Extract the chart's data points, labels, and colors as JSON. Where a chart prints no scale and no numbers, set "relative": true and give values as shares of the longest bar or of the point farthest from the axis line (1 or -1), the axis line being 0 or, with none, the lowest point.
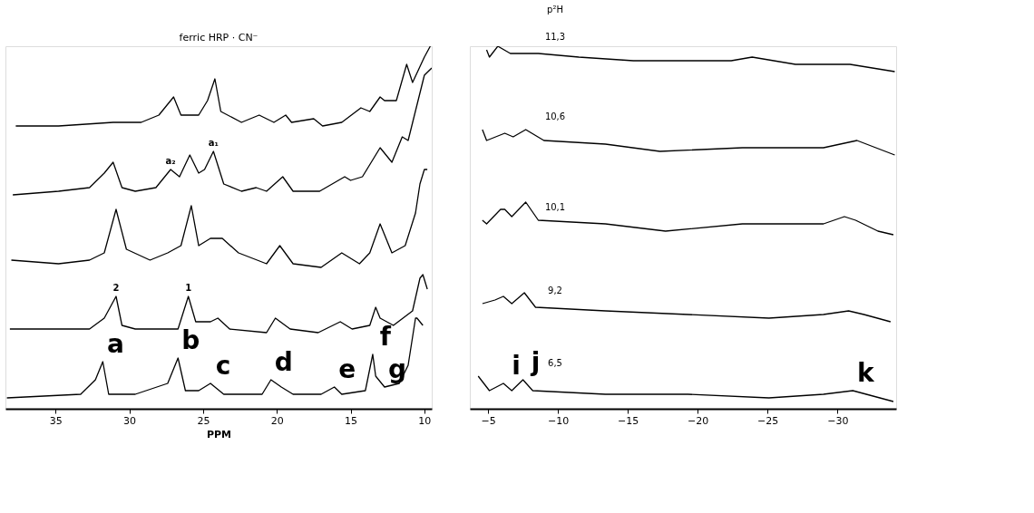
{
  "chart_data": [
    {
      "type": "line",
      "title": "ferric HRP · CN⁻",
      "xlabel": "PPM",
      "relative": true,
      "xlim": [
        38.4,
        9.5
      ],
      "xticks": [
        35,
        30,
        25,
        20,
        15,
        10
      ],
      "grid": false,
      "marker": "none",
      "line_style": "solid",
      "legend": false,
      "series": [
        {
          "color": "#000000",
          "x": [
            37.7,
            34.8,
            31.1,
            29.2,
            28.0,
            27.0,
            26.5,
            25.3,
            24.7,
            24.2,
            23.8,
            22.4,
            21.2,
            20.2,
            19.4,
            19.0,
            17.5,
            16.9,
            15.6,
            14.3,
            13.7,
            13.0,
            12.7,
            11.9,
            11.2,
            10.8,
            10.0,
            9.6
          ],
          "values": [
            0.78,
            0.78,
            0.79,
            0.79,
            0.81,
            0.86,
            0.81,
            0.81,
            0.85,
            0.91,
            0.82,
            0.79,
            0.81,
            0.79,
            0.81,
            0.79,
            0.8,
            0.78,
            0.79,
            0.83,
            0.82,
            0.86,
            0.85,
            0.85,
            0.95,
            0.9,
            0.97,
            1.0
          ]
        },
        {
          "color": "#000000",
          "x": [
            37.9,
            34.8,
            32.7,
            31.7,
            31.1,
            30.5,
            29.6,
            28.2,
            27.2,
            26.6,
            25.9,
            25.3,
            24.9,
            24.3,
            23.6,
            22.4,
            21.4,
            20.7,
            19.6,
            18.9,
            17.1,
            15.4,
            15.0,
            14.2,
            13.0,
            12.2,
            11.5,
            11.1,
            10.0,
            9.5
          ],
          "values": [
            0.59,
            0.6,
            0.61,
            0.65,
            0.68,
            0.61,
            0.6,
            0.61,
            0.66,
            0.64,
            0.7,
            0.65,
            0.66,
            0.71,
            0.62,
            0.6,
            0.61,
            0.6,
            0.64,
            0.6,
            0.6,
            0.64,
            0.63,
            0.64,
            0.72,
            0.68,
            0.75,
            0.74,
            0.92,
            0.94
          ]
        },
        {
          "color": "#000000",
          "x": [
            38.0,
            34.8,
            32.7,
            31.7,
            30.9,
            30.2,
            28.6,
            27.4,
            26.5,
            25.8,
            25.3,
            24.5,
            23.7,
            22.6,
            20.7,
            19.8,
            18.9,
            17.0,
            15.6,
            14.4,
            13.7,
            13.0,
            12.2,
            11.3,
            10.6,
            10.3,
            10.0,
            9.8
          ],
          "values": [
            0.41,
            0.4,
            0.41,
            0.43,
            0.55,
            0.44,
            0.41,
            0.43,
            0.45,
            0.56,
            0.45,
            0.47,
            0.47,
            0.43,
            0.4,
            0.45,
            0.4,
            0.39,
            0.43,
            0.4,
            0.43,
            0.51,
            0.43,
            0.45,
            0.54,
            0.62,
            0.66,
            0.66
          ]
        },
        {
          "color": "#000000",
          "x": [
            38.1,
            32.7,
            31.7,
            30.9,
            30.5,
            29.6,
            26.7,
            26.0,
            25.5,
            24.5,
            24.0,
            23.2,
            20.7,
            20.1,
            19.1,
            17.2,
            15.7,
            14.9,
            13.7,
            13.3,
            13.0,
            12.1,
            10.8,
            10.3,
            10.1,
            9.8
          ],
          "values": [
            0.22,
            0.22,
            0.25,
            0.31,
            0.23,
            0.22,
            0.22,
            0.31,
            0.24,
            0.24,
            0.25,
            0.22,
            0.21,
            0.25,
            0.22,
            0.21,
            0.24,
            0.22,
            0.23,
            0.28,
            0.25,
            0.23,
            0.27,
            0.36,
            0.37,
            0.33
          ]
        },
        {
          "color": "#000000",
          "x": [
            38.3,
            33.3,
            32.3,
            31.8,
            31.4,
            29.6,
            27.4,
            26.7,
            26.2,
            25.3,
            24.5,
            23.6,
            21.0,
            20.4,
            19.7,
            18.9,
            17.0,
            16.1,
            15.6,
            14.0,
            13.5,
            13.3,
            12.7,
            11.7,
            11.1,
            10.6,
            10.5,
            10.1
          ],
          "values": [
            0.03,
            0.04,
            0.08,
            0.13,
            0.04,
            0.04,
            0.07,
            0.14,
            0.05,
            0.05,
            0.07,
            0.04,
            0.04,
            0.08,
            0.06,
            0.04,
            0.04,
            0.06,
            0.04,
            0.05,
            0.15,
            0.09,
            0.06,
            0.07,
            0.12,
            0.25,
            0.25,
            0.23
          ]
        }
      ],
      "annotations": [
        {
          "text": "a₂",
          "x": 27.2,
          "y": 0.66
        },
        {
          "text": "a₁",
          "x": 24.3,
          "y": 0.71
        },
        {
          "text": "2",
          "x": 30.9,
          "y": 0.31
        },
        {
          "text": "1",
          "x": 26.0,
          "y": 0.31
        },
        {
          "text": "a",
          "x": 31.8,
          "y": 0.13
        },
        {
          "text": "b",
          "x": 26.7,
          "y": 0.14
        },
        {
          "text": "c",
          "x": 24.5,
          "y": 0.07
        },
        {
          "text": "d",
          "x": 20.4,
          "y": 0.08
        },
        {
          "text": "e",
          "x": 16.1,
          "y": 0.06
        },
        {
          "text": "f",
          "x": 13.5,
          "y": 0.15
        },
        {
          "text": "g",
          "x": 12.7,
          "y": 0.06
        }
      ]
    },
    {
      "type": "line",
      "legend_title": "p²H",
      "relative": true,
      "xlim": [
        -3.7,
        -34.2
      ],
      "xticks": [
        -5,
        -10,
        -15,
        -20,
        -25,
        -30
      ],
      "grid": false,
      "marker": "none",
      "line_style": "solid",
      "legend": "top left",
      "series": [
        {
          "name": "11,3",
          "color": "#000000",
          "x": [
            -4.9,
            -5.1,
            -5.7,
            -6.6,
            -8.6,
            -11.5,
            -15.4,
            -19.3,
            -20.8,
            -22.4,
            -23.9,
            -27.0,
            -30.9,
            -34.1
          ],
          "values": [
            0.99,
            0.97,
            1.0,
            0.98,
            0.98,
            0.97,
            0.96,
            0.96,
            0.96,
            0.96,
            0.97,
            0.95,
            0.95,
            0.93
          ]
        },
        {
          "name": "10,6",
          "color": "#000000",
          "x": [
            -4.6,
            -4.9,
            -6.2,
            -6.8,
            -7.7,
            -9.0,
            -13.4,
            -17.3,
            -23.2,
            -29.0,
            -31.4,
            -34.1
          ],
          "values": [
            0.77,
            0.74,
            0.76,
            0.75,
            0.77,
            0.74,
            0.73,
            0.71,
            0.72,
            0.72,
            0.74,
            0.7
          ]
        },
        {
          "name": "10,1",
          "color": "#000000",
          "x": [
            -4.6,
            -4.9,
            -5.9,
            -6.2,
            -6.7,
            -7.7,
            -8.6,
            -13.4,
            -17.7,
            -23.2,
            -29.0,
            -30.5,
            -31.3,
            -32.9,
            -34.0
          ],
          "values": [
            0.52,
            0.51,
            0.55,
            0.55,
            0.53,
            0.57,
            0.52,
            0.51,
            0.49,
            0.51,
            0.51,
            0.53,
            0.52,
            0.49,
            0.48
          ]
        },
        {
          "name": "9,2",
          "color": "#000000",
          "x": [
            -4.6,
            -5.5,
            -6.1,
            -6.7,
            -7.6,
            -8.4,
            -13.4,
            -19.3,
            -25.1,
            -29.0,
            -30.8,
            -31.9,
            -33.8
          ],
          "values": [
            0.29,
            0.3,
            0.31,
            0.29,
            0.32,
            0.28,
            0.27,
            0.26,
            0.25,
            0.26,
            0.27,
            0.26,
            0.24
          ]
        },
        {
          "name": "6,5",
          "color": "#000000",
          "x": [
            -4.3,
            -5.1,
            -6.1,
            -6.7,
            -7.5,
            -8.2,
            -13.4,
            -19.3,
            -25.1,
            -29.0,
            -31.1,
            -34.0
          ],
          "values": [
            0.09,
            0.05,
            0.07,
            0.05,
            0.08,
            0.05,
            0.04,
            0.04,
            0.03,
            0.04,
            0.05,
            0.02
          ]
        }
      ],
      "annotations": [
        {
          "text": "i",
          "x": -6.1,
          "y": 0.07
        },
        {
          "text": "j",
          "x": -7.5,
          "y": 0.08
        },
        {
          "text": "k",
          "x": -31.1,
          "y": 0.05
        }
      ]
    }
  ]
}
